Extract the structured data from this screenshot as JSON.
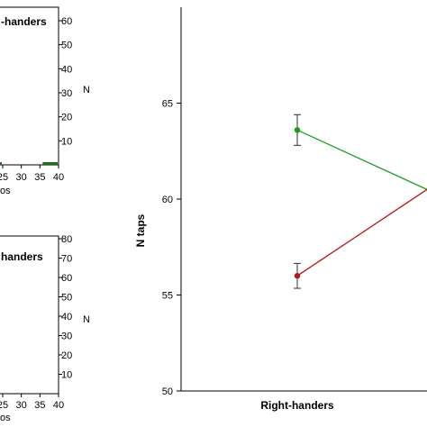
{
  "chart_data": [
    {
      "type": "bar",
      "title": "Right-handers",
      "title_visible": "-handers",
      "ylabel": "N",
      "xlabel_visible": "os",
      "ylim": [
        0,
        60
      ],
      "yticks": [
        "10",
        "20",
        "30",
        "40",
        "50",
        "60"
      ],
      "xticks": [
        "25",
        "30",
        "35",
        "40"
      ],
      "bars": [
        {
          "x": [
            20,
            25
          ],
          "value": 0.5
        },
        {
          "x": [
            35,
            40
          ],
          "value": 0.5
        }
      ],
      "bar_color": "#1f6e1f"
    },
    {
      "type": "bar",
      "title": "Left-handers",
      "title_visible": "handers",
      "ylabel": "N",
      "xlabel_visible": "os",
      "ylim": [
        0,
        80
      ],
      "yticks": [
        "10",
        "20",
        "30",
        "40",
        "50",
        "60",
        "70",
        "80"
      ],
      "xticks": [
        "25",
        "30",
        "35",
        "40"
      ]
    },
    {
      "type": "line",
      "ylabel": "N taps",
      "ylim": [
        50,
        68
      ],
      "yticks": [
        "50",
        "55",
        "60",
        "65"
      ],
      "categories": [
        "Right-handers",
        ""
      ],
      "series": [
        {
          "color": "#1a9e1a",
          "values": [
            63.6,
            60.5
          ],
          "err": [
            0.8,
            null
          ]
        },
        {
          "color": "#b01a1a",
          "values": [
            56.0,
            60.5
          ],
          "err": [
            0.65,
            null
          ]
        }
      ]
    }
  ]
}
